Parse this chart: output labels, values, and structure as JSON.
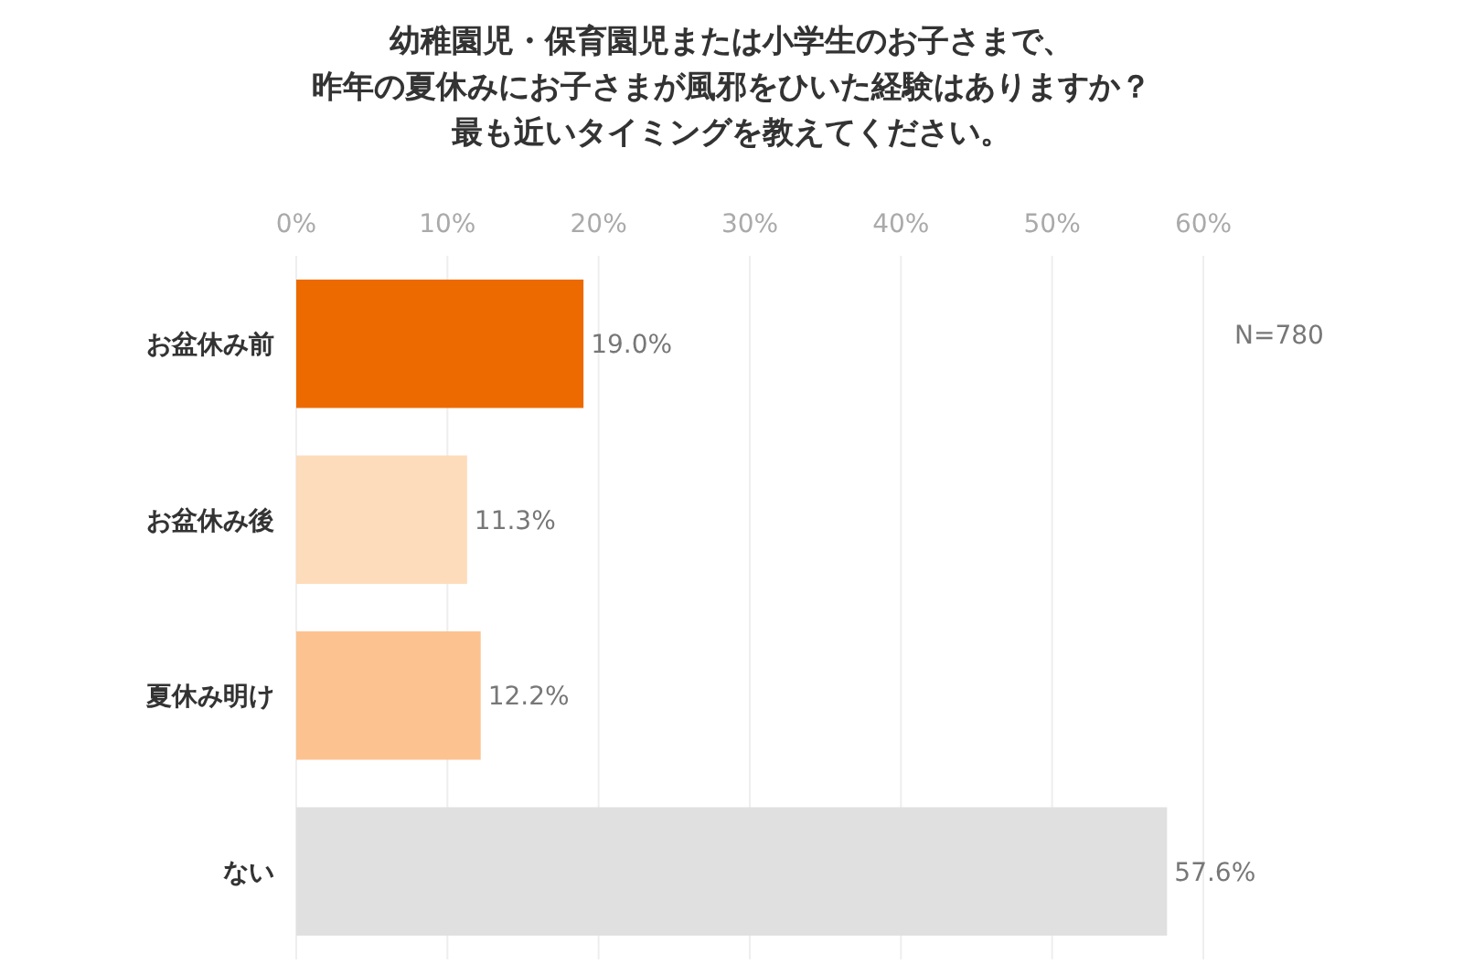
{
  "chart_data": {
    "type": "bar",
    "orientation": "horizontal",
    "title": "幼稚園児・保育園児または小学生のお子さまで、昨年の夏休みにお子さまが風邪をひいた経験はありますか？最も近いタイミングを教えてください。",
    "categories": [
      "お盆休み前",
      "お盆休み後",
      "夏休み明け",
      "ない"
    ],
    "values": [
      19.0,
      11.3,
      12.2,
      57.6
    ],
    "colors": [
      "#ec6a00",
      "#fddcbb",
      "#fcc391",
      "#e0e0e0"
    ],
    "value_labels": [
      "19.0%",
      "11.3%",
      "12.2%",
      "57.6%"
    ],
    "xlim": [
      0,
      60
    ],
    "xticks": [
      {
        "value": 0,
        "label": "0%"
      },
      {
        "value": 10,
        "label": "10%"
      },
      {
        "value": 20,
        "label": "20%"
      },
      {
        "value": 30,
        "label": "30%"
      },
      {
        "value": 40,
        "label": "40%"
      },
      {
        "value": 50,
        "label": "50%"
      },
      {
        "value": 60,
        "label": "60%"
      }
    ],
    "grid": "x",
    "annotations": [
      "N=780"
    ]
  }
}
